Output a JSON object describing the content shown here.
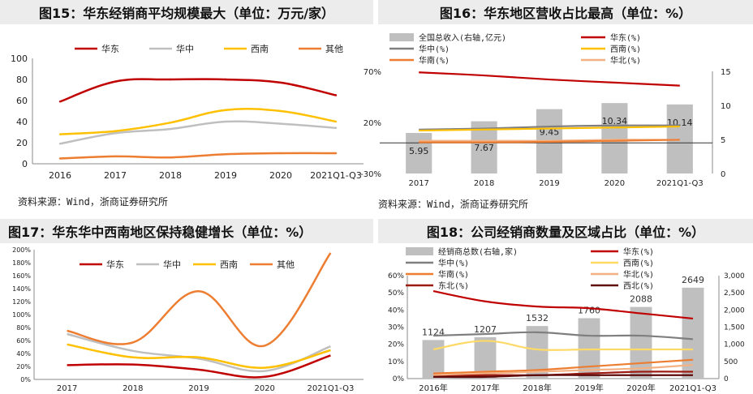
{
  "panels": {
    "p15": {
      "title": "图15：华东经销商平均规模最大（单位：万元/家）",
      "source": "资料来源：Wind，浙商证券研究所"
    },
    "p16": {
      "title": "图16：华东地区营收占比最高（单位：%）",
      "source": "资料来源：Wind，浙商证券研究所"
    },
    "p17": {
      "title": "图17：华东华中西南地区保持稳健增长（单位：%）"
    },
    "p18": {
      "title": "图18：公司经销商数量及区域占比（单位：%）"
    }
  },
  "chart_data": [
    {
      "id": "fig15",
      "type": "line",
      "title": "图15：华东经销商平均规模最大（单位：万元/家）",
      "categories": [
        "2016",
        "2017",
        "2018",
        "2019",
        "2020",
        "2021Q1-Q3"
      ],
      "ylim": [
        0,
        100
      ],
      "yticks": [
        0,
        20,
        40,
        60,
        80,
        100
      ],
      "legend_position": "top",
      "grid": false,
      "series": [
        {
          "name": "华东",
          "color": "#c00000",
          "values": [
            59,
            78,
            80,
            80,
            77,
            65
          ]
        },
        {
          "name": "华中",
          "color": "#bfbfbf",
          "values": [
            19,
            29,
            33,
            40,
            38,
            34
          ]
        },
        {
          "name": "西南",
          "color": "#ffc000",
          "values": [
            28,
            31,
            39,
            51,
            50,
            40
          ]
        },
        {
          "name": "其他",
          "color": "#ed7d31",
          "values": [
            5,
            7,
            6,
            9,
            10,
            10
          ]
        }
      ]
    },
    {
      "id": "fig16",
      "type": "bar+line",
      "title": "图16：华东地区营收占比最高（单位：%）",
      "categories": [
        "2017",
        "2018",
        "2019",
        "2020",
        "2021Q1-Q3"
      ],
      "ylim": [
        -30,
        70
      ],
      "yticks": [
        "-30%",
        "20%",
        "70%"
      ],
      "y2lim": [
        0,
        15
      ],
      "y2ticks": [
        0,
        5,
        10,
        15
      ],
      "legend_position": "top",
      "bar_series": {
        "name": "全国总收入(右轴,亿元)",
        "color": "#bfbfbf",
        "values": [
          5.95,
          7.67,
          9.45,
          10.34,
          10.14
        ]
      },
      "series": [
        {
          "name": "华东(%)",
          "color": "#c00000",
          "values": [
            69,
            66,
            62,
            59,
            56
          ]
        },
        {
          "name": "华中(%)",
          "color": "#7f7f7f",
          "values": [
            13,
            14,
            16,
            17,
            17
          ]
        },
        {
          "name": "西南(%)",
          "color": "#ffc000",
          "values": [
            12,
            13,
            14,
            15,
            16
          ]
        },
        {
          "name": "华北(%)",
          "color": "#f4b183",
          "values": [
            2,
            2,
            2,
            3,
            3
          ]
        },
        {
          "name": "华南(%)",
          "color": "#ed7d31",
          "values": [
            0.5,
            0.5,
            1,
            2,
            3
          ]
        }
      ]
    },
    {
      "id": "fig17",
      "type": "line",
      "title": "图17：华东华中西南地区保持稳健增长（单位：%）",
      "categories": [
        "2017",
        "2018",
        "2019",
        "2020",
        "2021Q1-Q3"
      ],
      "ylim": [
        0,
        200
      ],
      "yticks": [
        "0%",
        "20%",
        "40%",
        "60%",
        "80%",
        "100%",
        "120%",
        "140%",
        "160%",
        "180%",
        "200%"
      ],
      "legend_position": "top",
      "series": [
        {
          "name": "华东",
          "color": "#c00000",
          "values": [
            22,
            23,
            15,
            4,
            37
          ]
        },
        {
          "name": "华中",
          "color": "#bfbfbf",
          "values": [
            70,
            44,
            32,
            13,
            51
          ]
        },
        {
          "name": "西南",
          "color": "#ffc000",
          "values": [
            54,
            34,
            34,
            18,
            45
          ]
        },
        {
          "name": "其他",
          "color": "#ed7d31",
          "values": [
            75,
            57,
            136,
            52,
            195
          ]
        }
      ]
    },
    {
      "id": "fig18",
      "type": "bar+line",
      "title": "图18：公司经销商数量及区域占比（单位：%）",
      "categories": [
        "2016年",
        "2017年",
        "2018年",
        "2019年",
        "2020年",
        "2021Q1-Q3"
      ],
      "ylim": [
        0,
        60
      ],
      "yticks": [
        "0%",
        "10%",
        "20%",
        "30%",
        "40%",
        "50%",
        "60%"
      ],
      "y2lim": [
        0,
        3000
      ],
      "y2ticks": [
        "0",
        "500",
        "1,000",
        "1,500",
        "2,000",
        "2,500",
        "3,000"
      ],
      "legend_position": "top",
      "bar_series": {
        "name": "经销商总数(右轴,家)",
        "color": "#bfbfbf",
        "values": [
          1124,
          1207,
          1532,
          1760,
          2088,
          2649
        ]
      },
      "series": [
        {
          "name": "华东(%)",
          "color": "#c00000",
          "values": [
            51,
            45,
            42,
            41,
            38,
            35
          ]
        },
        {
          "name": "华中(%)",
          "color": "#7f7f7f",
          "values": [
            25,
            26,
            27,
            25,
            25,
            23
          ]
        },
        {
          "name": "西南(%)",
          "color": "#ffd966",
          "values": [
            17,
            22,
            17,
            17,
            17,
            17
          ]
        },
        {
          "name": "华南(%)",
          "color": "#ed7d31",
          "values": [
            3,
            4,
            5,
            7,
            9,
            11
          ]
        },
        {
          "name": "华北(%)",
          "color": "#f4b183",
          "values": [
            2,
            3,
            4,
            5,
            6,
            8
          ]
        },
        {
          "name": "东北(%)",
          "color": "#9e1b12",
          "values": [
            1,
            2,
            2,
            3,
            4,
            4
          ]
        },
        {
          "name": "西北(%)",
          "color": "#5c0a0a",
          "values": [
            1,
            1,
            2,
            2,
            2,
            2
          ]
        }
      ]
    }
  ]
}
